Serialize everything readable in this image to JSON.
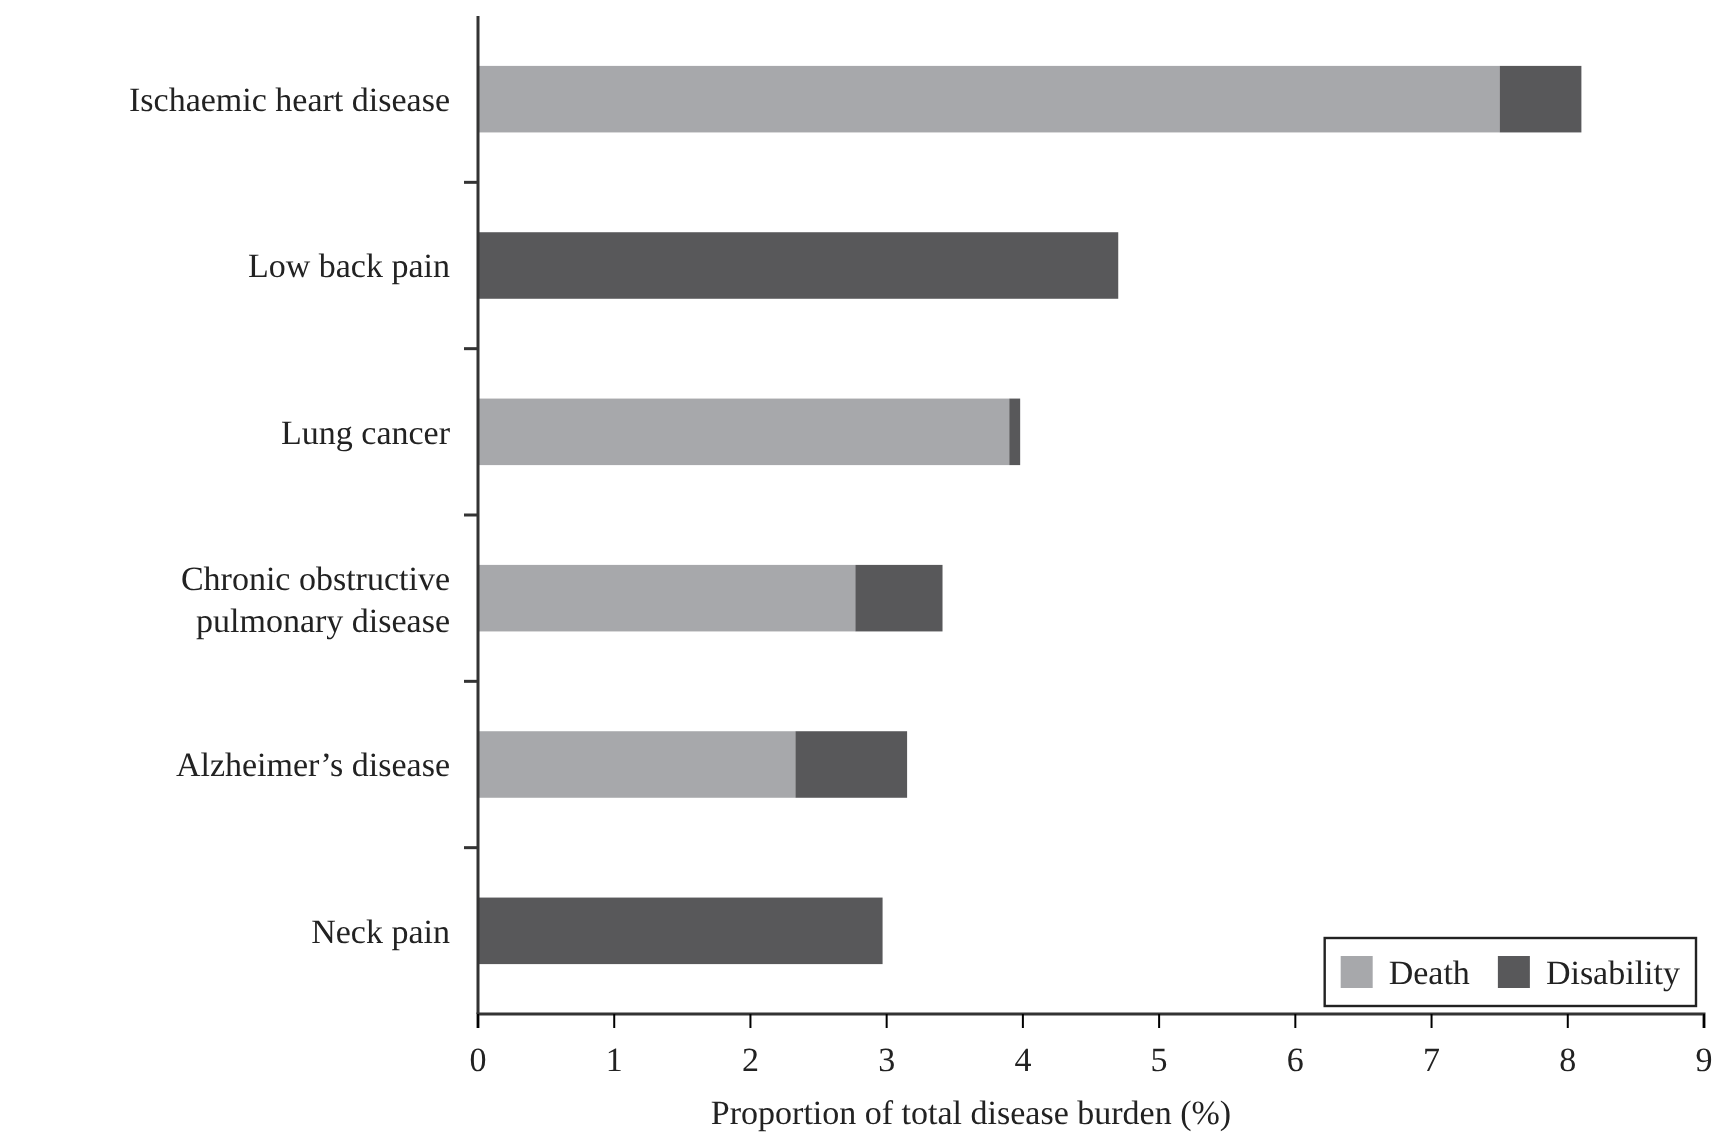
{
  "chart_data": {
    "type": "bar",
    "orientation": "horizontal",
    "stacked": true,
    "xlabel": "Proportion of total disease burden (%)",
    "categories": [
      "Ischaemic heart disease",
      "Low back pain",
      "Lung cancer",
      "Chronic obstructive pulmonary disease",
      "Alzheimer’s disease",
      "Neck pain"
    ],
    "series": [
      {
        "name": "Death",
        "color": "#a7a8ab",
        "values": [
          7.5,
          0,
          3.9,
          2.77,
          2.33,
          0
        ]
      },
      {
        "name": "Disability",
        "color": "#58585a",
        "values": [
          0.6,
          4.7,
          0.08,
          0.64,
          0.82,
          2.97
        ]
      }
    ],
    "xlim": [
      0,
      9
    ],
    "xticks": [
      0,
      1,
      2,
      3,
      4,
      5,
      6,
      7,
      8,
      9
    ],
    "legend": "bottom right"
  }
}
